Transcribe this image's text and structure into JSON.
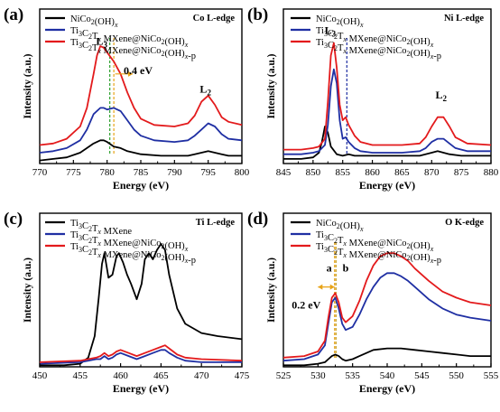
{
  "chart_data": [
    {
      "type": "line",
      "panel_label": "(a)",
      "edge_label": "Co L-edge",
      "xlabel": "Energy (eV)",
      "ylabel": "Intensity (a.u.)",
      "xlim": [
        770,
        800
      ],
      "xticks": [
        770,
        775,
        780,
        785,
        790,
        795,
        800
      ],
      "ylim": [
        0,
        1
      ],
      "legend_position": "top-left",
      "annotations": [
        {
          "text": "L",
          "sub": "3",
          "x": 779.2,
          "y": 0.77
        },
        {
          "text": "0.4 eV",
          "x": 784.6,
          "y": 0.58
        },
        {
          "text": "L",
          "sub": "2",
          "x": 794.6,
          "y": 0.46
        }
      ],
      "arrow": {
        "x_from": 781.2,
        "x_to": 783.8,
        "y": 0.58
      },
      "vlines": [
        {
          "x": 780.4,
          "color": "#2ca02c"
        },
        {
          "x": 781.0,
          "color": "#e8a317"
        }
      ],
      "series": [
        {
          "name": "NiCo₂(OH)ₓ",
          "color": "#000000",
          "x": [
            770,
            772,
            774,
            776,
            777,
            778,
            779,
            779.5,
            780,
            781,
            782,
            783,
            785,
            788,
            790,
            792,
            793,
            794,
            795,
            796,
            797,
            798,
            800
          ],
          "y": [
            0.02,
            0.03,
            0.04,
            0.07,
            0.1,
            0.13,
            0.15,
            0.15,
            0.14,
            0.11,
            0.1,
            0.08,
            0.06,
            0.05,
            0.05,
            0.05,
            0.06,
            0.07,
            0.08,
            0.07,
            0.06,
            0.05,
            0.05
          ]
        },
        {
          "name": "Ti₃C₂Tₓ MXene@NiCo₂(OH)ₓ",
          "color": "#1f2fa3",
          "x": [
            770,
            772,
            774,
            776,
            777,
            778,
            779,
            779.5,
            780,
            781,
            782,
            783,
            784,
            785,
            787,
            790,
            792,
            793,
            794,
            795,
            796,
            797,
            798,
            800
          ],
          "y": [
            0.07,
            0.08,
            0.1,
            0.15,
            0.22,
            0.32,
            0.36,
            0.36,
            0.35,
            0.36,
            0.34,
            0.28,
            0.22,
            0.18,
            0.15,
            0.14,
            0.15,
            0.18,
            0.22,
            0.26,
            0.24,
            0.19,
            0.16,
            0.15
          ]
        },
        {
          "name": "Ti₃C₂Tₓ MXene@NiCo₂(OH)ₓ-p",
          "color": "#e31a1c",
          "x": [
            770,
            772,
            774,
            776,
            777,
            778,
            778.5,
            779,
            779.5,
            780,
            781,
            782,
            783,
            784,
            785,
            787,
            790,
            792,
            793,
            794,
            795,
            796,
            797,
            798,
            800
          ],
          "y": [
            0.12,
            0.13,
            0.16,
            0.24,
            0.36,
            0.58,
            0.7,
            0.76,
            0.75,
            0.72,
            0.66,
            0.58,
            0.46,
            0.36,
            0.29,
            0.25,
            0.24,
            0.26,
            0.31,
            0.4,
            0.44,
            0.38,
            0.3,
            0.27,
            0.25
          ]
        }
      ]
    },
    {
      "type": "line",
      "panel_label": "(b)",
      "edge_label": "Ni L-edge",
      "xlabel": "Energy (eV)",
      "ylabel": "Intensity (a.u.)",
      "xlim": [
        845,
        880
      ],
      "xticks": [
        845,
        850,
        855,
        860,
        865,
        870,
        875,
        880
      ],
      "ylim": [
        0,
        1
      ],
      "legend_position": "top-left",
      "annotations": [
        {
          "text": "L",
          "sub": "3",
          "x": 852.9,
          "y": 0.84
        },
        {
          "text": "L",
          "sub": "2",
          "x": 871.6,
          "y": 0.42
        }
      ],
      "vlines": [
        {
          "x": 855.7,
          "color": "#1f2fa3"
        }
      ],
      "series": [
        {
          "name": "NiCo₂(OH)ₓ",
          "color": "#000000",
          "x": [
            845,
            848,
            850,
            851,
            851.5,
            852,
            852.5,
            853,
            854,
            855,
            856,
            857,
            860,
            865,
            868,
            870,
            871,
            872,
            873,
            875,
            880
          ],
          "y": [
            0.03,
            0.03,
            0.04,
            0.07,
            0.14,
            0.24,
            0.2,
            0.11,
            0.06,
            0.05,
            0.06,
            0.05,
            0.05,
            0.05,
            0.05,
            0.07,
            0.08,
            0.07,
            0.06,
            0.05,
            0.05
          ]
        },
        {
          "name": "Ti₃C₂Tₓ MXene@NiCo₂(OH)ₓ",
          "color": "#1f2fa3",
          "x": [
            845,
            848,
            850,
            851,
            852,
            852.5,
            853,
            853.5,
            854,
            854.5,
            855,
            855.5,
            856,
            857,
            858,
            860,
            865,
            868,
            869,
            870,
            871,
            872,
            873,
            874,
            876,
            880
          ],
          "y": [
            0.06,
            0.06,
            0.07,
            0.08,
            0.12,
            0.25,
            0.5,
            0.61,
            0.52,
            0.28,
            0.16,
            0.17,
            0.14,
            0.1,
            0.08,
            0.07,
            0.07,
            0.08,
            0.1,
            0.14,
            0.16,
            0.16,
            0.13,
            0.1,
            0.08,
            0.08
          ]
        },
        {
          "name": "Ti₃C₂Tₓ MXene@NiCo₂(OH)ₓ-p",
          "color": "#e31a1c",
          "x": [
            845,
            848,
            850,
            851,
            852,
            852.5,
            853,
            853.5,
            854,
            854.5,
            855,
            855.5,
            856,
            857,
            858,
            860,
            865,
            868,
            869,
            870,
            871,
            872,
            873,
            874,
            876,
            880
          ],
          "y": [
            0.09,
            0.09,
            0.1,
            0.11,
            0.16,
            0.4,
            0.7,
            0.78,
            0.62,
            0.38,
            0.28,
            0.3,
            0.25,
            0.18,
            0.14,
            0.12,
            0.12,
            0.13,
            0.17,
            0.24,
            0.3,
            0.3,
            0.24,
            0.17,
            0.13,
            0.12
          ]
        }
      ]
    },
    {
      "type": "line",
      "panel_label": "(c)",
      "edge_label": "Ti L-edge",
      "xlabel": "Energy (eV)",
      "ylabel": "Intensity (a.u.)",
      "xlim": [
        450,
        475
      ],
      "xticks": [
        450,
        455,
        460,
        465,
        470,
        475
      ],
      "ylim": [
        0,
        1
      ],
      "legend_position": "top-left",
      "annotations": [],
      "series": [
        {
          "name": "Ti₃C₂Tₓ MXene",
          "color": "#000000",
          "x": [
            450,
            453,
            455,
            456,
            456.8,
            457.3,
            457.7,
            458,
            458.5,
            459,
            459.5,
            459.8,
            460.3,
            460.8,
            461.3,
            462,
            462.6,
            463,
            463.5,
            464,
            464.5,
            465,
            465.5,
            466,
            467,
            468,
            470,
            472,
            475
          ],
          "y": [
            0.01,
            0.01,
            0.02,
            0.06,
            0.2,
            0.45,
            0.67,
            0.74,
            0.58,
            0.6,
            0.72,
            0.74,
            0.68,
            0.6,
            0.54,
            0.44,
            0.54,
            0.7,
            0.74,
            0.7,
            0.76,
            0.8,
            0.76,
            0.6,
            0.38,
            0.28,
            0.22,
            0.2,
            0.18
          ]
        },
        {
          "name": "Ti₃C₂Tₓ MXene@NiCo₂(OH)ₓ",
          "color": "#1f2fa3",
          "x": [
            450,
            455,
            456,
            457,
            457.5,
            458,
            458.5,
            459,
            459.5,
            460,
            461,
            462,
            463,
            464,
            465,
            465.5,
            466,
            467,
            468,
            470,
            475
          ],
          "y": [
            0.02,
            0.03,
            0.04,
            0.05,
            0.05,
            0.07,
            0.05,
            0.06,
            0.08,
            0.09,
            0.07,
            0.05,
            0.07,
            0.09,
            0.11,
            0.11,
            0.09,
            0.06,
            0.04,
            0.03,
            0.03
          ]
        },
        {
          "name": "Ti₃C₂Tₓ MXene@NiCo₂(OH)ₓ-p",
          "color": "#e31a1c",
          "x": [
            450,
            455,
            456,
            457,
            457.5,
            458,
            458.5,
            459,
            459.5,
            460,
            461,
            462,
            463,
            464,
            465,
            465.5,
            466,
            467,
            468,
            470,
            475
          ],
          "y": [
            0.03,
            0.04,
            0.05,
            0.06,
            0.07,
            0.09,
            0.07,
            0.08,
            0.1,
            0.11,
            0.09,
            0.07,
            0.09,
            0.11,
            0.13,
            0.14,
            0.12,
            0.08,
            0.06,
            0.05,
            0.04
          ]
        }
      ]
    },
    {
      "type": "line",
      "panel_label": "(d)",
      "edge_label": "O K-edge",
      "xlabel": "Energy (eV)",
      "ylabel": "Intensity (a.u.)",
      "xlim": [
        525,
        555
      ],
      "xticks": [
        525,
        530,
        535,
        540,
        545,
        550,
        555
      ],
      "ylim": [
        0,
        1
      ],
      "legend_position": "top-left",
      "annotations": [
        {
          "text": "a",
          "x": 531.6,
          "y": 0.62
        },
        {
          "text": "b",
          "x": 534.0,
          "y": 0.62
        },
        {
          "text": "0.2 eV",
          "x": 528.3,
          "y": 0.38
        }
      ],
      "arrow": {
        "x_from": 530.0,
        "x_to": 532.4,
        "y": 0.52
      },
      "vlines": [
        {
          "x": 532.4,
          "color": "#e8a317"
        },
        {
          "x": 532.6,
          "color": "#c49a1a"
        }
      ],
      "series": [
        {
          "name": "NiCo₂(OH)ₓ",
          "color": "#000000",
          "x": [
            525,
            528,
            530,
            531,
            531.5,
            532,
            532.5,
            533,
            533.5,
            534,
            535,
            536,
            537,
            538,
            540,
            542,
            544,
            546,
            548,
            550,
            552,
            555
          ],
          "y": [
            0.01,
            0.01,
            0.02,
            0.03,
            0.05,
            0.07,
            0.08,
            0.07,
            0.05,
            0.04,
            0.05,
            0.07,
            0.09,
            0.11,
            0.12,
            0.12,
            0.11,
            0.1,
            0.09,
            0.08,
            0.07,
            0.07
          ]
        },
        {
          "name": "Ti₃C₂Tₓ MXene@NiCo₂(OH)ₓ",
          "color": "#1f2fa3",
          "x": [
            525,
            528,
            530,
            531,
            531.5,
            532,
            532.5,
            533,
            533.5,
            534,
            535,
            536,
            537,
            538,
            539,
            540,
            541,
            542,
            543,
            544,
            546,
            548,
            550,
            552,
            555
          ],
          "y": [
            0.04,
            0.05,
            0.08,
            0.14,
            0.28,
            0.42,
            0.45,
            0.38,
            0.28,
            0.24,
            0.26,
            0.34,
            0.44,
            0.52,
            0.58,
            0.61,
            0.61,
            0.59,
            0.56,
            0.52,
            0.44,
            0.38,
            0.34,
            0.32,
            0.3
          ]
        },
        {
          "name": "Ti₃C₂Tₓ MXene@NiCo₂(OH)ₓ-p",
          "color": "#e31a1c",
          "x": [
            525,
            528,
            530,
            531,
            531.5,
            532,
            532.5,
            533,
            533.5,
            534,
            535,
            536,
            537,
            538,
            539,
            540,
            541,
            542,
            543,
            544,
            546,
            548,
            550,
            552,
            555
          ],
          "y": [
            0.06,
            0.07,
            0.1,
            0.17,
            0.32,
            0.45,
            0.48,
            0.42,
            0.32,
            0.29,
            0.33,
            0.43,
            0.56,
            0.66,
            0.72,
            0.74,
            0.74,
            0.72,
            0.69,
            0.64,
            0.56,
            0.49,
            0.45,
            0.42,
            0.4
          ]
        }
      ]
    }
  ]
}
